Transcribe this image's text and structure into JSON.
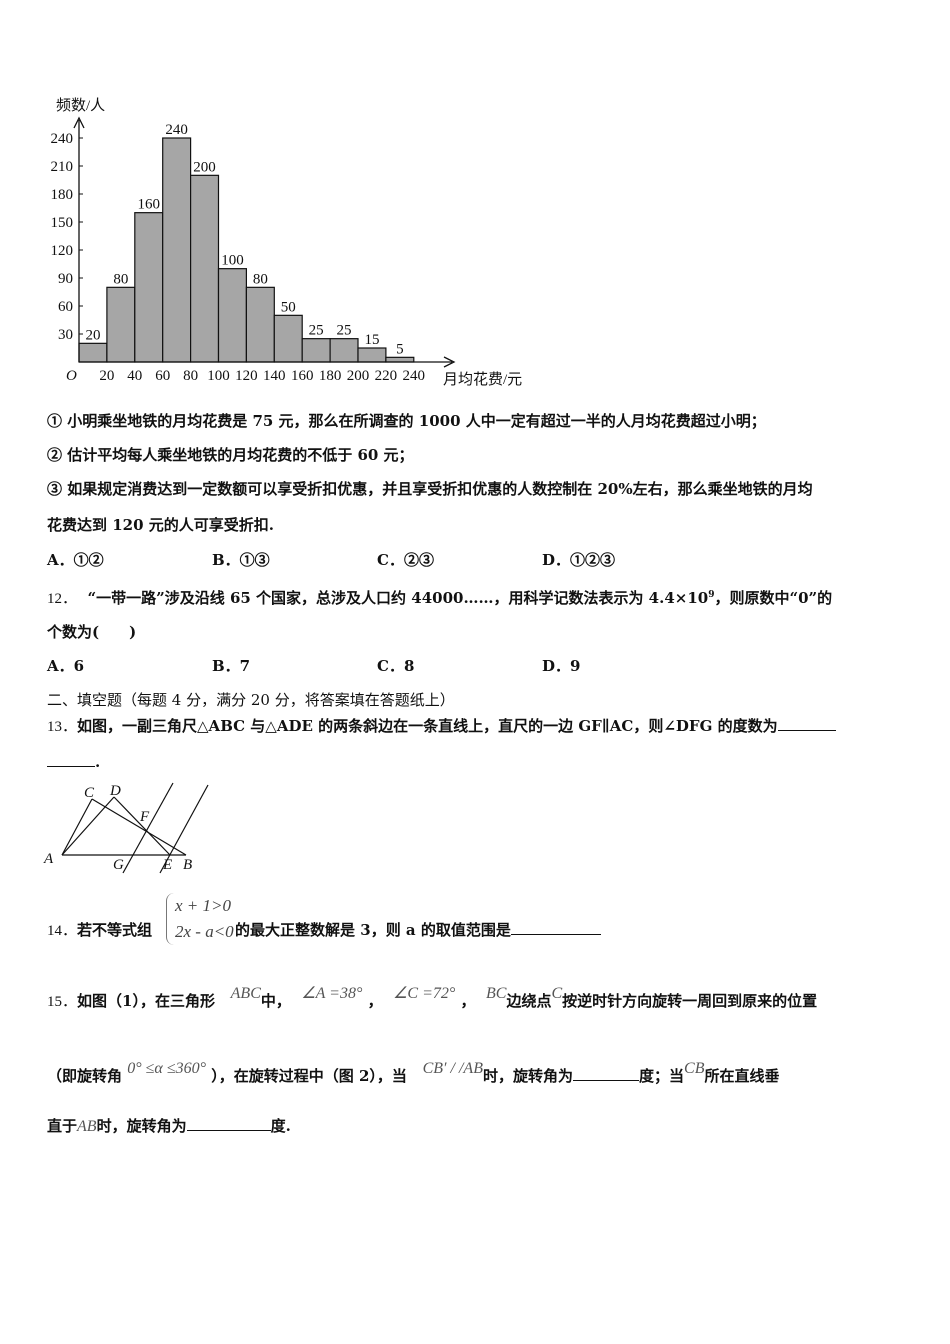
{
  "chart_data": {
    "type": "bar",
    "ylabel": "频数/人",
    "xlabel": "月均花费/元",
    "origin_label": "O",
    "x_ticks": [
      20,
      40,
      60,
      80,
      100,
      120,
      140,
      160,
      180,
      200,
      220,
      240
    ],
    "y_ticks": [
      30,
      60,
      90,
      120,
      150,
      180,
      210,
      240
    ],
    "bins": [
      [
        0,
        20
      ],
      [
        20,
        40
      ],
      [
        40,
        60
      ],
      [
        60,
        80
      ],
      [
        80,
        100
      ],
      [
        100,
        120
      ],
      [
        120,
        140
      ],
      [
        140,
        160
      ],
      [
        160,
        180
      ],
      [
        180,
        200
      ],
      [
        200,
        220
      ],
      [
        220,
        240
      ]
    ],
    "values": [
      20,
      80,
      160,
      240,
      200,
      100,
      80,
      50,
      25,
      25,
      15,
      5
    ],
    "ylim": [
      0,
      255
    ],
    "xlim": [
      0,
      260
    ],
    "bar_color": "#a6a6a6"
  },
  "q11": {
    "s1": "① 小明乘坐地铁的月均花费是 75 元，那么在所调查的 1000 人中一定有超过一半的人月均花费超过小明；",
    "s2": "② 估计平均每人乘坐地铁的月均花费的不低于 60 元；",
    "s3": "③ 如果规定消费达到一定数额可以享受折扣优惠，并且享受折扣优惠的人数控制在 20%左右，那么乘坐地铁的月均",
    "s3b": "花费达到 120 元的人可享受折扣.",
    "options": [
      "A．①②",
      "B．①③",
      "C．②③",
      "D．①②③"
    ]
  },
  "q12": {
    "num": "12．",
    "text1": "“一带一路”涉及沿线 65 个国家，总涉及人口约 44000……，用科学记数法表示为 4.4×10",
    "exp": "9",
    "text2": "，则原数中“0”的",
    "text3": "个数为(　　)",
    "options": [
      "A．6",
      "B．7",
      "C．8",
      "D．9"
    ]
  },
  "section2": "二、填空题（每题 4 分，满分 20 分，将答案填在答题纸上）",
  "q13": {
    "num": "13．",
    "text": "如图，一副三角尺△ABC 与△ADE 的两条斜边在一条直线上，直尺的一边 GF∥AC，则∠DFG 的度数为",
    "end": ".",
    "fig_labels": {
      "A": "A",
      "B": "B",
      "C": "C",
      "D": "D",
      "E": "E",
      "F": "F",
      "G": "G"
    }
  },
  "q14": {
    "num": "14．",
    "pre": "若不等式组",
    "ineq1": "x + 1>0",
    "ineq2": "2x - a<0",
    "post": "的最大正整数解是 3，则 a 的取值范围是"
  },
  "q15": {
    "num": "15．",
    "t1": "如图（1），在三角形",
    "m1": "ABC",
    "t2": "中，",
    "m2": "∠A =38°",
    "t3": "，",
    "m3": "∠C =72°",
    "t4": "，",
    "m4": "BC",
    "t5": "边绕点",
    "m5": "C",
    "t6": "按逆时针方向旋转一周回到原来的位置",
    "t7": "（即旋转角",
    "m6": "0°  ≤α ≤360°",
    "t8": "），在旋转过程中（图  2），当",
    "m7": "CB′ / /AB",
    "t9": "时，旋转角为",
    "t10": "度；当",
    "m8": "CB",
    "t11": "所在直线垂",
    "t12": "直于",
    "m9": "AB",
    "t13": "时，旋转角为",
    "t14": "度."
  }
}
